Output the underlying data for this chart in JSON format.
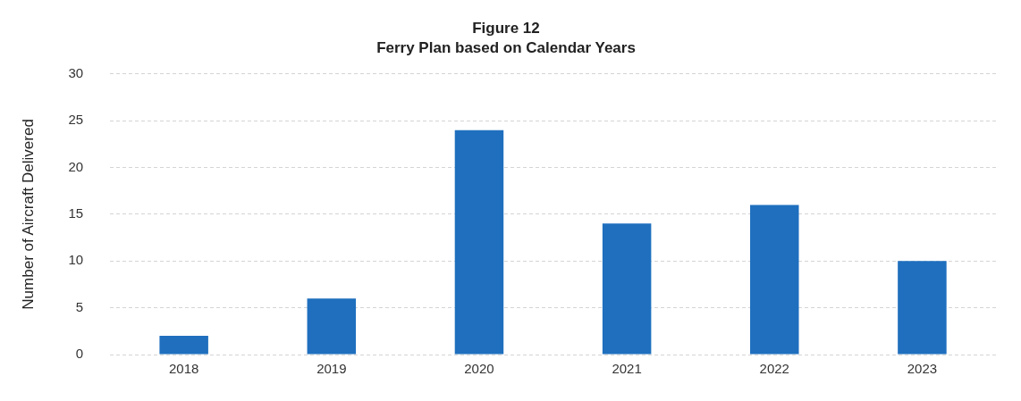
{
  "chart_data": {
    "type": "bar",
    "title": "Figure 12",
    "subtitle": "Ferry Plan based on Calendar Years",
    "ylabel": "Number of Aircraft Delivered",
    "categories": [
      "2018",
      "2019",
      "2020",
      "2021",
      "2022",
      "2023"
    ],
    "values": [
      2,
      6,
      24,
      14,
      16,
      10
    ],
    "color": "#1f6fbe",
    "ylim": [
      0,
      30
    ],
    "yticks": [
      0,
      5,
      10,
      15,
      20,
      25,
      30
    ],
    "grid": "y",
    "legend": false
  }
}
